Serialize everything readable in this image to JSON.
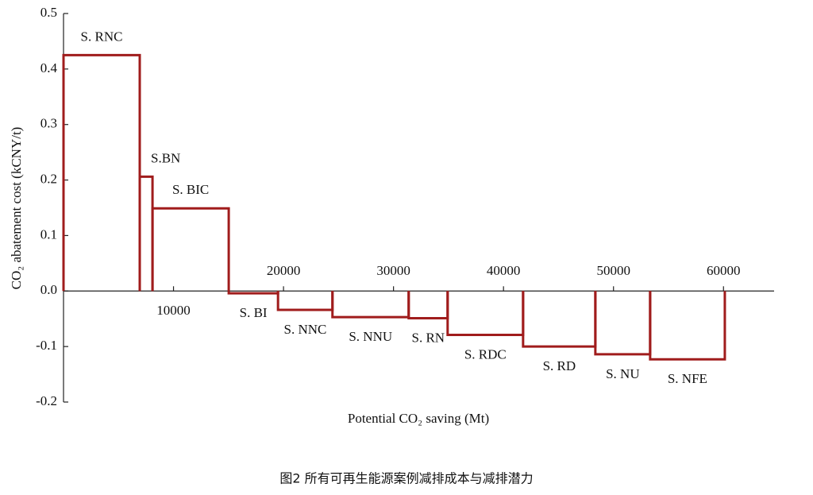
{
  "chart_data": {
    "type": "macc",
    "caption": "图2 所有可再生能源案例减排成本与减排潜力",
    "x_label": "Potential CO₂ saving (Mt)",
    "y_label": "CO₂ abatement cost (kCNY/t)",
    "categories": [
      "S. RNC",
      "S.BN",
      "S. BIC",
      "S. BI",
      "S. NNC",
      "S. NNU",
      "S. RN",
      "S. RDC",
      "S. RD",
      "S. NU",
      "S. NFE"
    ],
    "values": [
      0.425,
      0.206,
      0.149,
      -0.004,
      -0.034,
      -0.047,
      -0.049,
      -0.079,
      -0.1,
      -0.114,
      -0.123
    ],
    "widths": [
      6930,
      1160,
      6930,
      4480,
      4950,
      6930,
      3540,
      6860,
      6570,
      4980,
      6790
    ],
    "color": "#a01c1c",
    "xlim": [
      0,
      64600
    ],
    "xticks": [
      10000,
      20000,
      30000,
      40000,
      50000,
      60000
    ],
    "ylim": [
      -0.2,
      0.5
    ],
    "yticks": [
      0.5,
      0.4,
      0.3,
      0.2,
      0.1,
      {
        "value": 0,
        "label": "0.0"
      },
      -0.1,
      -0.2
    ]
  }
}
